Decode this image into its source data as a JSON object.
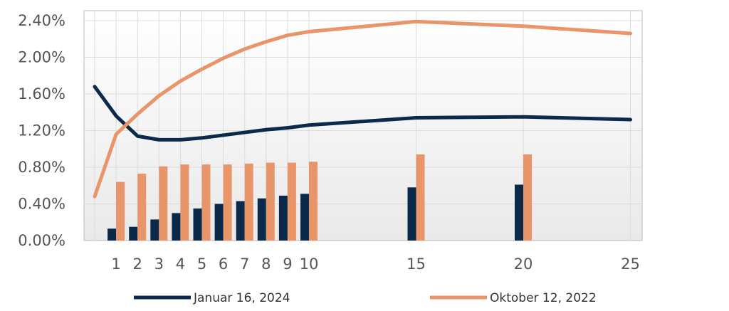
{
  "chart_data": {
    "type": "bar+line",
    "title": "",
    "xlabel": "",
    "ylabel": "",
    "ylim": [
      0,
      0.024
    ],
    "y_ticks": [
      "0.00%",
      "0.40%",
      "0.80%",
      "1.20%",
      "1.60%",
      "2.00%",
      "2.40%"
    ],
    "x_ticks": [
      1,
      2,
      3,
      4,
      5,
      6,
      7,
      8,
      9,
      10,
      15,
      20,
      25
    ],
    "xlim": [
      0,
      25
    ],
    "grid": true,
    "legend_placement": "bottom",
    "colors": {
      "series_2024": "#0b2a4a",
      "series_2022": "#e8956a",
      "grid": "#dcdcdc",
      "plot_border": "#bbbbbb"
    },
    "series": [
      {
        "name": "Januar 16, 2024",
        "line": {
          "x": [
            0,
            1,
            2,
            3,
            4,
            5,
            6,
            7,
            8,
            9,
            10,
            15,
            20,
            25
          ],
          "y": [
            0.0168,
            0.0136,
            0.0114,
            0.011,
            0.011,
            0.0112,
            0.0115,
            0.0118,
            0.0121,
            0.0123,
            0.0126,
            0.0134,
            0.0135,
            0.0132
          ]
        },
        "bars": {
          "x": [
            1,
            2,
            3,
            4,
            5,
            6,
            7,
            8,
            9,
            10,
            15,
            20
          ],
          "y": [
            0.0013,
            0.0015,
            0.0023,
            0.003,
            0.0035,
            0.004,
            0.0043,
            0.0046,
            0.0049,
            0.0051,
            0.0058,
            0.0061
          ]
        }
      },
      {
        "name": "Oktober 12, 2022",
        "line": {
          "x": [
            0,
            1,
            2,
            3,
            4,
            5,
            6,
            7,
            8,
            9,
            10,
            15,
            20,
            25
          ],
          "y": [
            0.0048,
            0.0116,
            0.0138,
            0.0158,
            0.0174,
            0.0187,
            0.0199,
            0.0209,
            0.0217,
            0.0224,
            0.0228,
            0.0239,
            0.0234,
            0.0226
          ]
        },
        "bars": {
          "x": [
            1,
            2,
            3,
            4,
            5,
            6,
            7,
            8,
            9,
            10,
            15,
            20
          ],
          "y": [
            0.0064,
            0.0073,
            0.0081,
            0.0083,
            0.0083,
            0.0083,
            0.0084,
            0.0085,
            0.0085,
            0.0086,
            0.0094,
            0.0094
          ]
        }
      }
    ]
  }
}
